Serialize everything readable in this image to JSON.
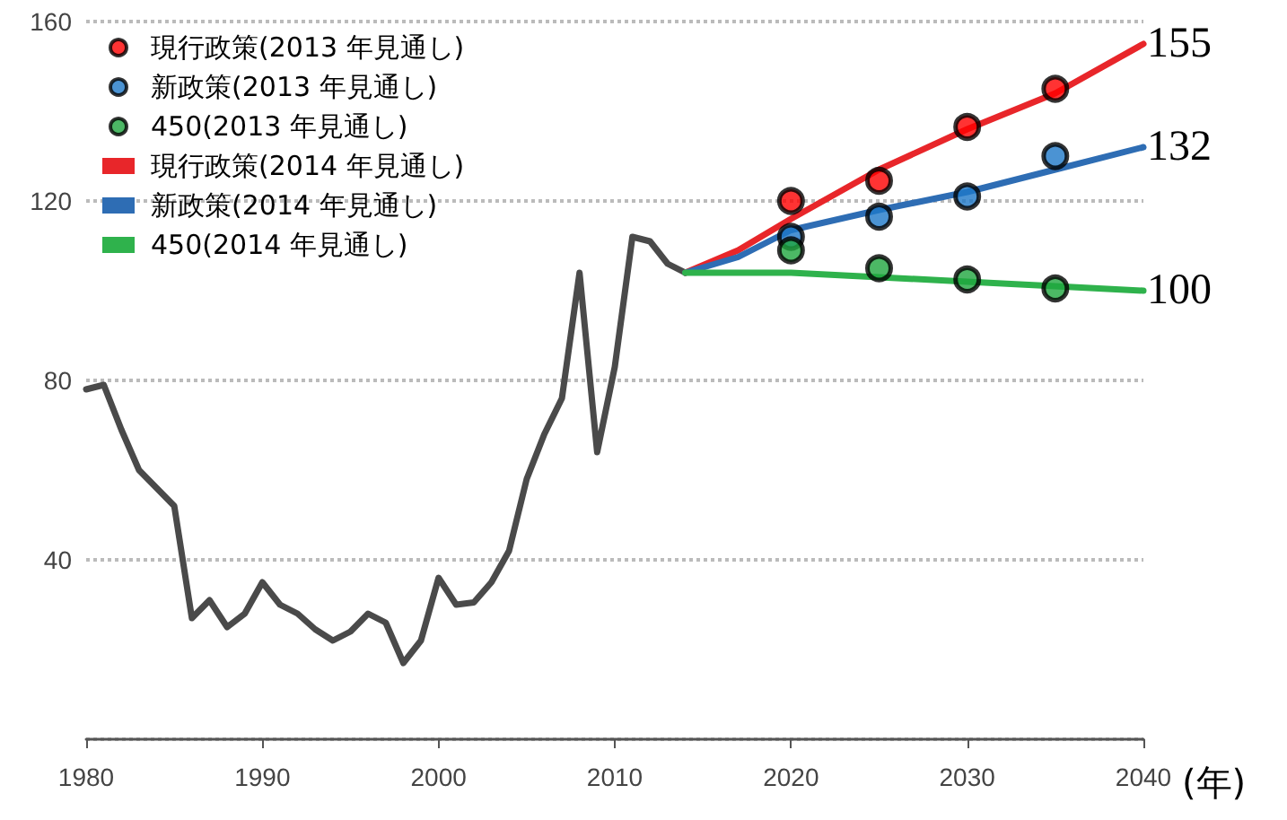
{
  "chart_data": {
    "type": "line",
    "xlabel": "(年)",
    "xlim": [
      1980,
      2040
    ],
    "xticks": [
      1980,
      1990,
      2000,
      2010,
      2020,
      2030,
      2040
    ],
    "ylim": [
      0,
      160
    ],
    "yticks": [
      {
        "value": 0,
        "label": null
      },
      40,
      80,
      120,
      160
    ],
    "grid": "y",
    "legend": "top left",
    "series": [
      {
        "color": "#4a4a4a",
        "marker": "none",
        "x": [
          1980,
          1981,
          1982,
          1983,
          1984,
          1985,
          1986,
          1987,
          1988,
          1989,
          1990,
          1991,
          1992,
          1993,
          1994,
          1995,
          1996,
          1997,
          1998,
          1999,
          2000,
          2001,
          2002,
          2003,
          2004,
          2005,
          2006,
          2007,
          2008,
          2009,
          2010,
          2011,
          2012,
          2013,
          2014
        ],
        "values": [
          78,
          79,
          69,
          60,
          56,
          52,
          27,
          31,
          25,
          28,
          35,
          30,
          28,
          24.5,
          22,
          24,
          28,
          26,
          17,
          22,
          36,
          30,
          30.5,
          35,
          42,
          58,
          68,
          76,
          104,
          64,
          83,
          112,
          111,
          106,
          104
        ]
      },
      {
        "name": "現行政策(2013 年見通し)",
        "type": "scatter",
        "marker": "circle",
        "color": "#ff0000",
        "x": [
          2020,
          2025,
          2030,
          2035
        ],
        "values": [
          120,
          124.5,
          136.5,
          145
        ]
      },
      {
        "name": "新政策(2013 年見通し)",
        "type": "scatter",
        "marker": "circle",
        "color": "#1e78c8",
        "x": [
          2020,
          2025,
          2030,
          2035
        ],
        "values": [
          112,
          116.5,
          121,
          130
        ]
      },
      {
        "name": "450(2013 年見通し)",
        "type": "scatter",
        "marker": "circle",
        "color": "#1fa63e",
        "x": [
          2020,
          2025,
          2030,
          2035
        ],
        "values": [
          109,
          105,
          102.5,
          100.5
        ]
      },
      {
        "name": "現行政策(2014 年見通し)",
        "marker": "none",
        "color": "#e8262a",
        "x": [
          2014,
          2017,
          2020,
          2025,
          2030,
          2035,
          2040
        ],
        "values": [
          104,
          109,
          116,
          127,
          136,
          144,
          155
        ],
        "value_labels": [
          null,
          null,
          null,
          null,
          null,
          null,
          "155"
        ]
      },
      {
        "name": "新政策(2014 年見通し)",
        "marker": "none",
        "color": "#2e6db4",
        "x": [
          2014,
          2017,
          2020,
          2025,
          2030,
          2035,
          2040
        ],
        "values": [
          104,
          107.5,
          113.5,
          118,
          122,
          127,
          132
        ],
        "value_labels": [
          null,
          null,
          null,
          null,
          null,
          null,
          "132"
        ]
      },
      {
        "name": "450(2014 年見通し)",
        "marker": "none",
        "color": "#2fb24c",
        "x": [
          2014,
          2017,
          2020,
          2025,
          2030,
          2035,
          2040
        ],
        "values": [
          104,
          104,
          104,
          103,
          102,
          101,
          100
        ],
        "value_labels": [
          null,
          null,
          null,
          null,
          null,
          null,
          "100"
        ]
      }
    ]
  }
}
